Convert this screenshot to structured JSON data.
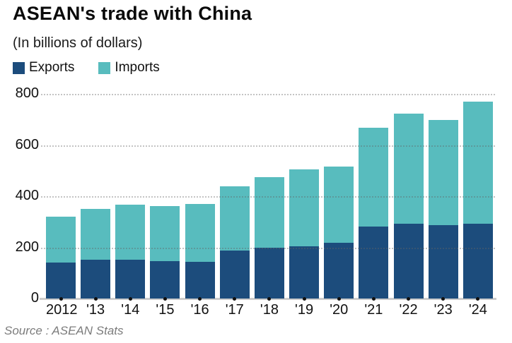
{
  "header": {
    "title": "ASEAN's trade with China",
    "subtitle": "(In billions of dollars)"
  },
  "legend": [
    {
      "label": "Exports",
      "color": "#1c4c7c"
    },
    {
      "label": "Imports",
      "color": "#58bcbe"
    }
  ],
  "source": "Source : ASEAN Stats",
  "chart_data": {
    "type": "bar",
    "stacked": true,
    "title": "ASEAN's trade with China",
    "subtitle": "(In billions of dollars)",
    "categories": [
      "2012",
      "'13",
      "'14",
      "'15",
      "'16",
      "'17",
      "'18",
      "'19",
      "'20",
      "'21",
      "'22",
      "'23",
      "'24"
    ],
    "series": [
      {
        "name": "Exports",
        "color": "#1c4c7c",
        "values": [
          142,
          153,
          153,
          145,
          143,
          187,
          198,
          203,
          219,
          282,
          292,
          286,
          292
        ]
      },
      {
        "name": "Imports",
        "color": "#58bcbe",
        "values": [
          178,
          197,
          213,
          217,
          226,
          253,
          277,
          302,
          298,
          387,
          430,
          413,
          478
        ]
      }
    ],
    "totals": [
      320,
      350,
      366,
      362,
      369,
      440,
      475,
      505,
      517,
      669,
      722,
      699,
      770
    ],
    "xlabel": "",
    "ylabel": "",
    "ylim": [
      0,
      800
    ],
    "yticks": [
      0,
      200,
      400,
      600,
      800
    ],
    "grid": "horizontal-dotted",
    "legend_position": "top-left",
    "source": "Source : ASEAN Stats"
  }
}
